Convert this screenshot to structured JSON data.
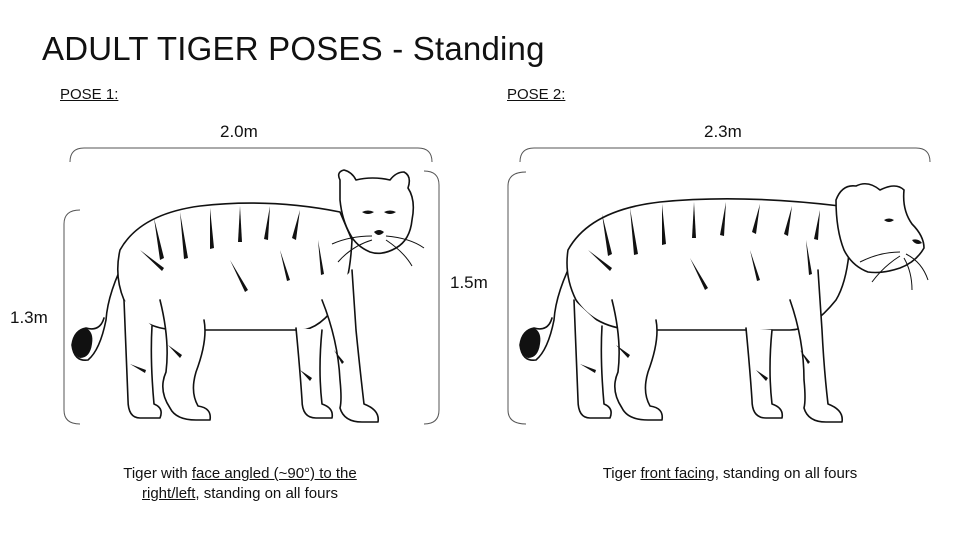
{
  "title": "ADULT TIGER POSES - Standing",
  "poses": [
    {
      "label": "POSE 1:",
      "width": "2.0m",
      "height": "1.3m",
      "caption": {
        "pre": "Tiger with ",
        "underlined": "face angled (~90°) to the right/left",
        "post": ", standing on all fours"
      },
      "icon": "tiger-standing-face-angled"
    },
    {
      "label": "POSE 2:",
      "width": "2.3m",
      "height": "1.5m",
      "caption": {
        "pre": "Tiger ",
        "underlined": "front facing",
        "post": ", standing on all fours"
      },
      "icon": "tiger-standing-front-facing"
    }
  ]
}
